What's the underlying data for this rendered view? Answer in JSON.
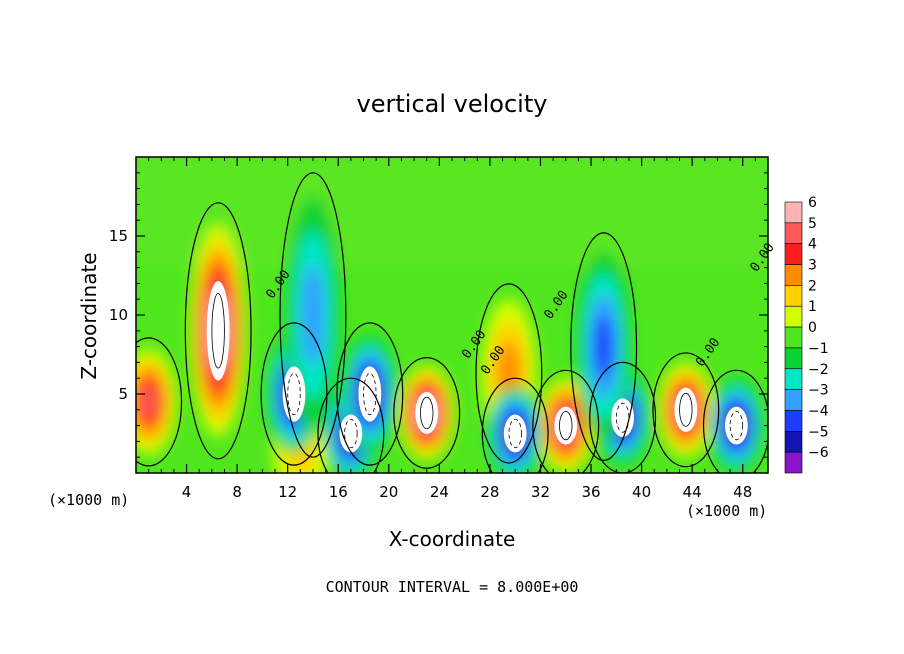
{
  "chart_data": {
    "type": "heatmap",
    "title": "vertical velocity",
    "xlabel": "X-coordinate",
    "ylabel": "Z-coordinate",
    "x_unit_label": "(×1000 m)",
    "x_unit_label_right": "(×1000 m)",
    "footer": "CONTOUR INTERVAL = 8.000E+00",
    "xlim": [
      0,
      50
    ],
    "ylim": [
      0,
      20
    ],
    "x_ticks": [
      4,
      8,
      12,
      16,
      20,
      24,
      28,
      32,
      36,
      40,
      44,
      48
    ],
    "y_ticks": [
      5,
      10,
      15
    ],
    "contour_labels": [
      "0.00",
      "0.00",
      "0.00",
      "0.00",
      "0.00",
      "0.00"
    ],
    "colorbar": {
      "levels": [
        6,
        5,
        4,
        3,
        2,
        1,
        0,
        -1,
        -2,
        -3,
        -4,
        -5,
        -6
      ],
      "labels": [
        "6",
        "5",
        "4",
        "3",
        "2",
        "1",
        "0",
        "−1",
        "−2",
        "−3",
        "−4",
        "−5",
        "−6"
      ],
      "colors": [
        "#ffb4b4",
        "#ff5a5a",
        "#ff1e1e",
        "#ff8c00",
        "#ffd200",
        "#d2ff00",
        "#50e61e",
        "#0ad232",
        "#00e6c8",
        "#32a0ff",
        "#1e3cff",
        "#1414b4",
        "#8c14c8"
      ]
    },
    "updrafts": [
      {
        "x": 1.0,
        "z": 4.5,
        "peak": 4.5
      },
      {
        "x": 6.5,
        "z": 9.0,
        "peak": 6.5
      },
      {
        "x": 23.0,
        "z": 3.8,
        "peak": 6.5
      },
      {
        "x": 34.0,
        "z": 3.0,
        "peak": 5.5
      },
      {
        "x": 43.5,
        "z": 4.0,
        "peak": 6.0
      },
      {
        "x": 29.5,
        "z": 6.3,
        "peak": 3.0
      },
      {
        "x": 13.0,
        "z": 1.5,
        "peak": 1.5
      }
    ],
    "downdrafts": [
      {
        "x": 12.5,
        "z": 5.0,
        "peak": -6.0
      },
      {
        "x": 17.0,
        "z": 2.5,
        "peak": -5.5
      },
      {
        "x": 18.5,
        "z": 5.0,
        "peak": -6.0
      },
      {
        "x": 30.0,
        "z": 2.5,
        "peak": -6.0
      },
      {
        "x": 38.5,
        "z": 3.5,
        "peak": -6.0
      },
      {
        "x": 47.5,
        "z": 3.0,
        "peak": -6.0
      },
      {
        "x": 14.0,
        "z": 10.0,
        "peak": -3.0
      },
      {
        "x": 37.0,
        "z": 8.0,
        "peak": -4.0
      }
    ]
  }
}
